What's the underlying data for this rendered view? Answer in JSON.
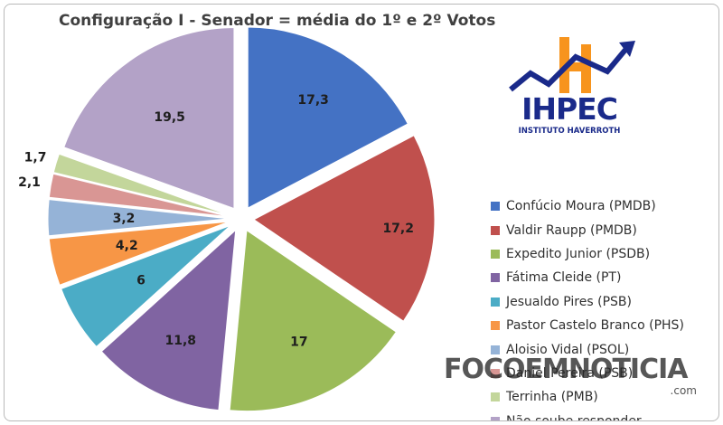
{
  "chart_data": {
    "type": "pie",
    "title": "Configuração I - Senador = média do 1º e 2º Votos",
    "series": [
      {
        "name": "Confúcio Moura (PMDB)",
        "value": 17.3,
        "label": "17,3",
        "color": "#4472c4"
      },
      {
        "name": "Valdir Raupp (PMDB)",
        "value": 17.2,
        "label": "17,2",
        "color": "#c0504d"
      },
      {
        "name": "Expedito Junior (PSDB)",
        "value": 17,
        "label": "17",
        "color": "#9bbb59"
      },
      {
        "name": "Fátima Cleide (PT)",
        "value": 11.8,
        "label": "11,8",
        "color": "#8064a2"
      },
      {
        "name": "Jesualdo Pires (PSB)",
        "value": 6,
        "label": "6",
        "color": "#4bacc6"
      },
      {
        "name": "Pastor Castelo Branco (PHS)",
        "value": 4.2,
        "label": "4,2",
        "color": "#f79646"
      },
      {
        "name": "Aloisio Vidal  (PSOL)",
        "value": 3.2,
        "label": "3,2",
        "color": "#95b3d7"
      },
      {
        "name": "Daniel Pereira (PSB)",
        "value": 2.1,
        "label": "2,1",
        "color": "#d99694"
      },
      {
        "name": "Terrinha (PMB)",
        "value": 1.7,
        "label": "1,7",
        "color": "#c3d69b"
      },
      {
        "name": "Não soube responder",
        "value": 19.5,
        "label": "19,5",
        "color": "#b3a2c7"
      }
    ],
    "legend": "right"
  },
  "logo": {
    "text": "IHPEC",
    "subtitle": "INSTITUTO HAVERROTH",
    "orange": "#f7941d",
    "blue": "#1a2a8a"
  },
  "watermark": {
    "text": "FOCOEMNOTICIA",
    "suffix": ".com"
  }
}
